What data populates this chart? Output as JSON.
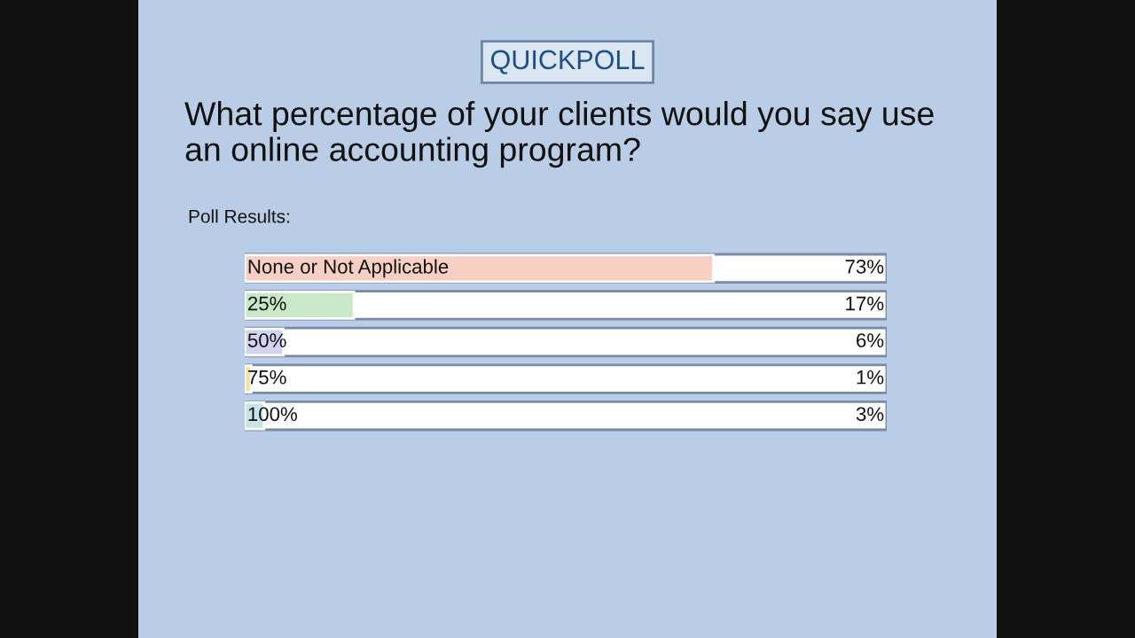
{
  "chart_data": {
    "type": "bar",
    "orientation": "horizontal",
    "title": "QUICKPOLL",
    "subtitle": "What percentage of your clients would you say use an online accounting program?",
    "annotations": [
      "Poll Results:"
    ],
    "categories": [
      "None or Not Applicable",
      "25%",
      "50%",
      "75%",
      "100%"
    ],
    "values": [
      73,
      17,
      6,
      1,
      3
    ],
    "colors": [
      "#f8cfc3",
      "#c9e8c8",
      "#d2d3f0",
      "#f5e0a0",
      "#c8e4ea"
    ],
    "value_labels": [
      "73%",
      "17%",
      "6%",
      "1%",
      "3%"
    ],
    "xlim": [
      0,
      100
    ],
    "tick_labels": false,
    "legend": false
  }
}
